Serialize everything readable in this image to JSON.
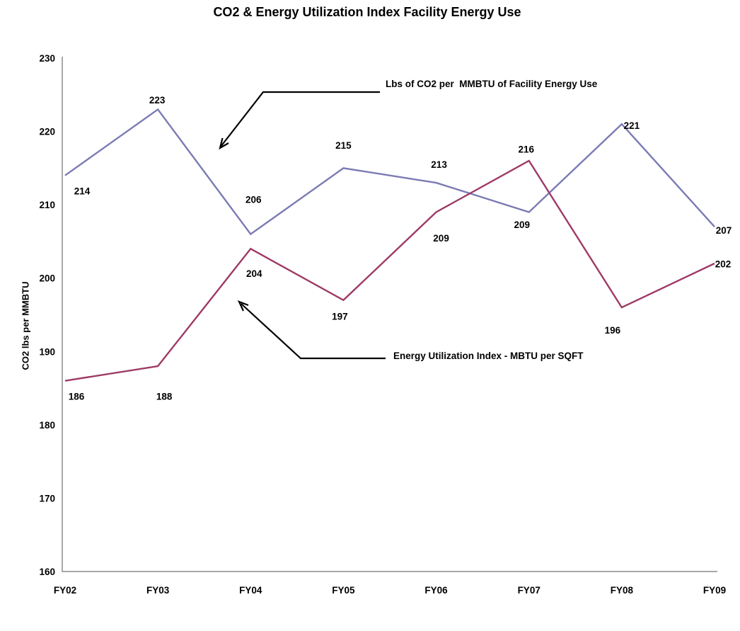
{
  "title": "CO2 & Energy Utilization Index Facility Energy Use",
  "y_axis": {
    "title": "CO2 lbs per MMBTU"
  },
  "annotations": {
    "co2_label": "Lbs of CO2 per  MMBTU of Facility Energy Use",
    "eui_label": "Energy Utilization Index - MBTU per SQFT"
  },
  "colors": {
    "co2_line": "#7B7BB4",
    "eui_line": "#9E3A66",
    "axis": "#8C8C8C",
    "text": "#000000",
    "background": "#FFFFFF"
  },
  "chart_data": {
    "type": "line",
    "title": "CO2 & Energy Utilization Index Facility Energy Use",
    "xlabel": "",
    "ylabel": "CO2 lbs per MMBTU",
    "categories": [
      "FY02",
      "FY03",
      "FY04",
      "FY05",
      "FY06",
      "FY07",
      "FY08",
      "FY09"
    ],
    "series": [
      {
        "id": "co2",
        "name": "Lbs of CO2 per MMBTU of Facility Energy Use",
        "color": "#7B7BB4",
        "values": [
          214,
          223,
          206,
          215,
          213,
          209,
          221,
          207
        ],
        "label_offsets": [
          [
            24,
            22
          ],
          [
            -1,
            -13
          ],
          [
            4,
            -49
          ],
          [
            0,
            -32
          ],
          [
            4,
            -26
          ],
          [
            -10,
            18
          ],
          [
            14,
            2
          ],
          [
            13,
            5
          ]
        ]
      },
      {
        "id": "eui",
        "name": "Energy Utilization Index - MBTU per SQFT",
        "color": "#9E3A66",
        "values": [
          186,
          188,
          204,
          197,
          209,
          216,
          196,
          202
        ],
        "label_offsets": [
          [
            16,
            22
          ],
          [
            9,
            43
          ],
          [
            5,
            35
          ],
          [
            -5,
            23
          ],
          [
            7,
            37
          ],
          [
            -4,
            -16
          ],
          [
            -13,
            32
          ],
          [
            12,
            1
          ]
        ]
      }
    ],
    "ylim": [
      160,
      230
    ],
    "ytick_step": 10,
    "grid": false,
    "legend_position": "none",
    "data_labels": true,
    "annotation_arrows": true
  }
}
